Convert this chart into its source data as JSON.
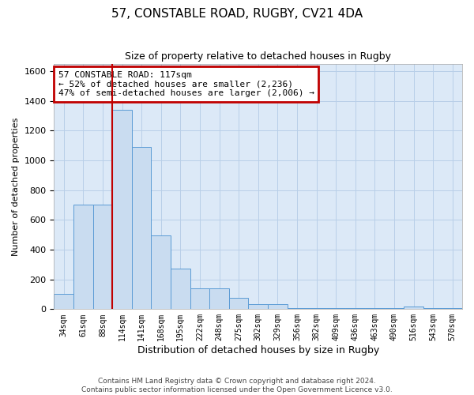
{
  "title": "57, CONSTABLE ROAD, RUGBY, CV21 4DA",
  "subtitle": "Size of property relative to detached houses in Rugby",
  "xlabel": "Distribution of detached houses by size in Rugby",
  "ylabel": "Number of detached properties",
  "categories": [
    "34sqm",
    "61sqm",
    "88sqm",
    "114sqm",
    "141sqm",
    "168sqm",
    "195sqm",
    "222sqm",
    "248sqm",
    "275sqm",
    "302sqm",
    "329sqm",
    "356sqm",
    "382sqm",
    "409sqm",
    "436sqm",
    "463sqm",
    "490sqm",
    "516sqm",
    "543sqm",
    "570sqm"
  ],
  "values": [
    100,
    700,
    700,
    1340,
    1090,
    495,
    275,
    140,
    140,
    75,
    35,
    35,
    5,
    5,
    5,
    5,
    5,
    5,
    20,
    5,
    5
  ],
  "bar_color": "#c9dcf0",
  "bar_edge_color": "#5b9bd5",
  "highlight_line_color": "#c00000",
  "highlight_line_index": 2,
  "annotation_text": "57 CONSTABLE ROAD: 117sqm\n← 52% of detached houses are smaller (2,236)\n47% of semi-detached houses are larger (2,006) →",
  "annotation_box_color": "#ffffff",
  "annotation_edge_color": "#c00000",
  "ylim": [
    0,
    1650
  ],
  "yticks": [
    0,
    200,
    400,
    600,
    800,
    1000,
    1200,
    1400,
    1600
  ],
  "grid_color": "#b8cfe8",
  "background_color": "#dce9f7",
  "footer1": "Contains HM Land Registry data © Crown copyright and database right 2024.",
  "footer2": "Contains public sector information licensed under the Open Government Licence v3.0."
}
